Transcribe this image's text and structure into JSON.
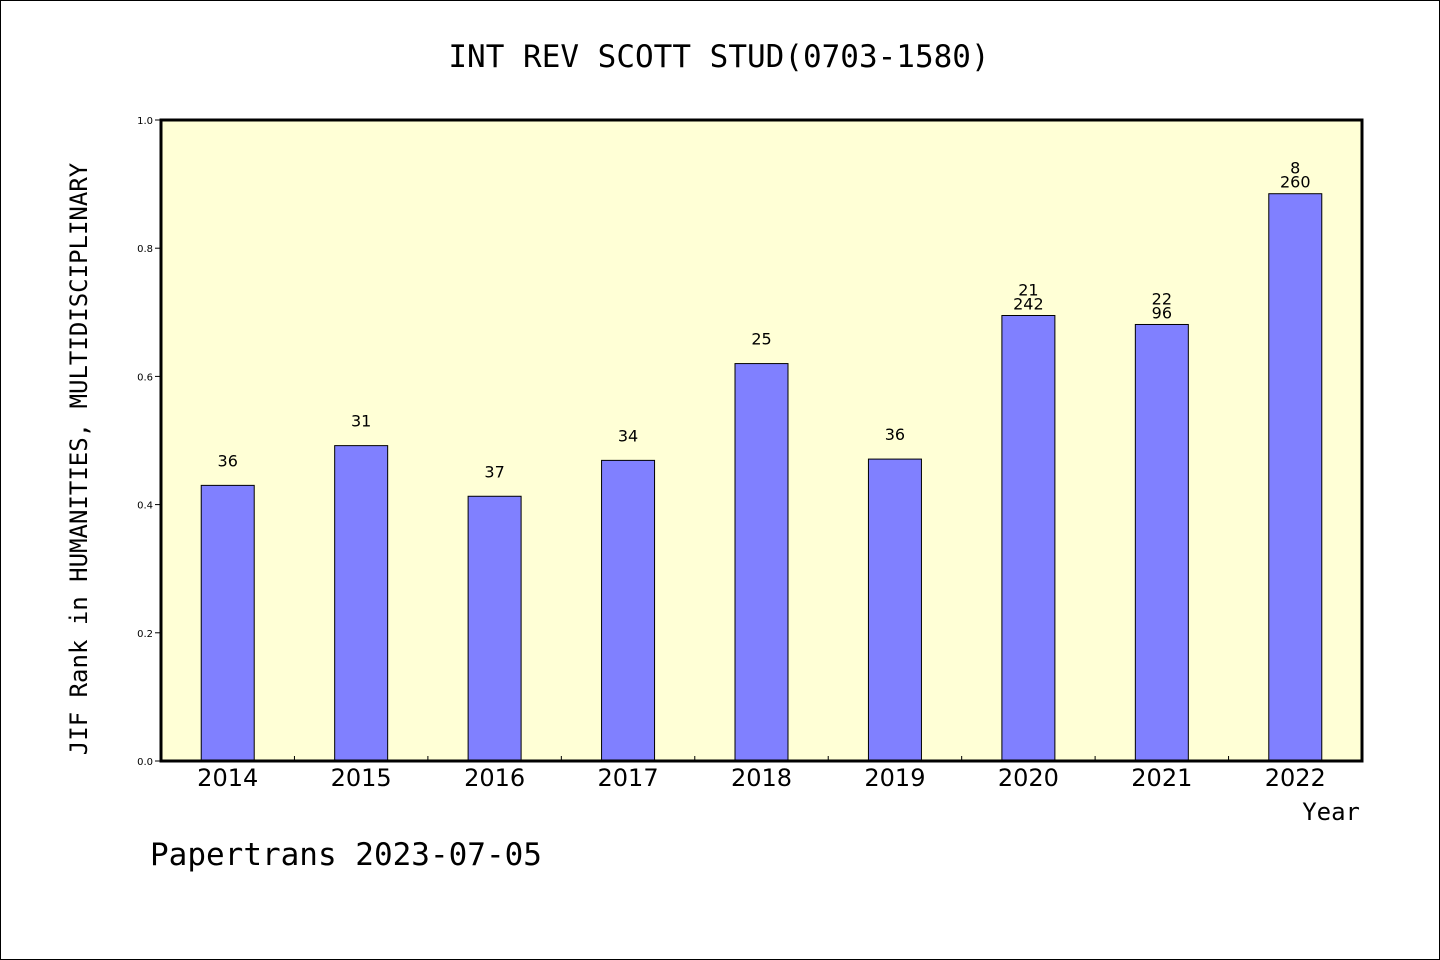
{
  "footer": "Papertrans 2023-07-05",
  "colors": {
    "plot_background": "#ffffd6",
    "bar_fill": "#8080ff",
    "bar_stroke": "#000000",
    "axis": "#000000"
  },
  "chart_data": {
    "type": "bar",
    "title": "INT REV SCOTT STUD(0703-1580)",
    "xlabel": "Year",
    "ylabel": "JIF Rank in HUMANITIES, MULTIDISCIPLINARY",
    "ylim": [
      0,
      1.0
    ],
    "yticks": [
      "0.0",
      "0.2",
      "0.4",
      "0.6",
      "0.8",
      "1.0"
    ],
    "grid": false,
    "categories": [
      "2014",
      "2015",
      "2016",
      "2017",
      "2018",
      "2019",
      "2020",
      "2021",
      "2022"
    ],
    "values": [
      0.43,
      0.492,
      0.413,
      0.469,
      0.62,
      0.471,
      0.695,
      0.681,
      0.885
    ],
    "data_labels": [
      [
        "36"
      ],
      [
        "31"
      ],
      [
        "37"
      ],
      [
        "34"
      ],
      [
        "25"
      ],
      [
        "36"
      ],
      [
        "21",
        "242"
      ],
      [
        "22",
        "96"
      ],
      [
        "8",
        "260"
      ]
    ]
  }
}
